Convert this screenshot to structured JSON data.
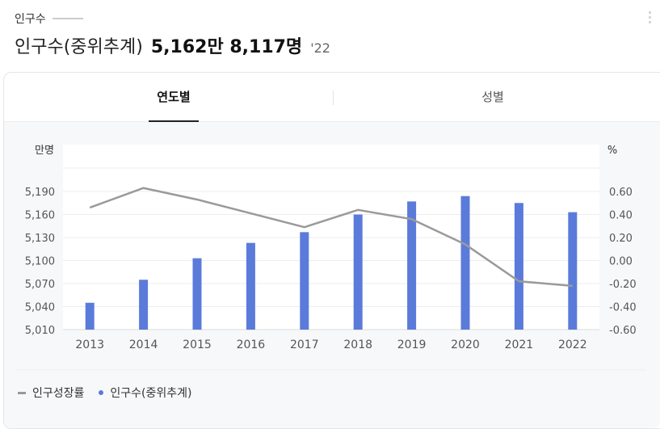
{
  "header": {
    "section_label": "인구수",
    "stat_name": "인구수(중위추계)",
    "stat_value": "5,162만 8,117명",
    "stat_year": "'22"
  },
  "tabs": [
    {
      "label": "연도별",
      "active": true
    },
    {
      "label": "성별",
      "active": false
    }
  ],
  "colors": {
    "bar": "#5b7bdb",
    "line": "#9a9a9a",
    "active_tab": "#222222"
  },
  "chart_data": {
    "type": "bar",
    "categories": [
      "2013",
      "2014",
      "2015",
      "2016",
      "2017",
      "2018",
      "2019",
      "2020",
      "2021",
      "2022"
    ],
    "series": [
      {
        "name": "인구수(중위추계)",
        "type": "bar",
        "axis": "left",
        "values": [
          5045,
          5075,
          5103,
          5123,
          5137,
          5160,
          5177,
          5184,
          5175,
          5163
        ]
      },
      {
        "name": "인구성장률",
        "type": "line",
        "axis": "right",
        "values": [
          0.46,
          0.63,
          0.53,
          0.41,
          0.29,
          0.44,
          0.36,
          0.14,
          -0.18,
          -0.22
        ]
      }
    ],
    "left_axis": {
      "unit": "만명",
      "ticks": [
        "5,010",
        "5,040",
        "5,070",
        "5,100",
        "5,130",
        "5,160",
        "5,190"
      ],
      "range": [
        5010,
        5190
      ]
    },
    "right_axis": {
      "unit": "%",
      "ticks": [
        "-0.60",
        "-0.40",
        "-0.20",
        "0.00",
        "0.20",
        "0.40",
        "0.60"
      ],
      "range": [
        -0.6,
        0.6
      ]
    },
    "grid": true,
    "legend_position": "bottom-left"
  }
}
